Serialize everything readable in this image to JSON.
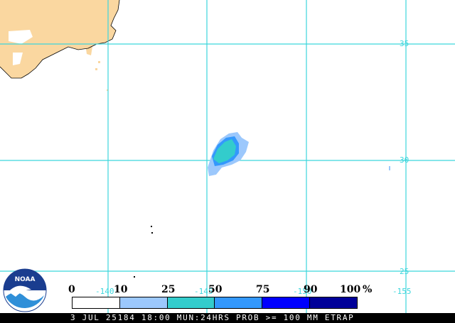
{
  "map": {
    "latitude_labels": [
      "35",
      "30",
      "25"
    ],
    "longitude_labels": [
      "-140",
      "-145",
      "-150",
      "-155"
    ]
  },
  "legend": {
    "values": [
      "0",
      "10",
      "25",
      "50",
      "75",
      "90",
      "100",
      "%"
    ],
    "colors": [
      "#ffffff",
      "#9cc8fc",
      "#33cccc",
      "#3398fc",
      "#0000fe",
      "#000099"
    ]
  },
  "footer": {
    "caption": "3 JUL 25184 18:00 MUN:24HRS PROB >= 100 MM ETRAP"
  },
  "logo": {
    "text": "NOAA"
  },
  "colors": {
    "land": "#fad7a0",
    "grid": "#3cd6dc",
    "background": "#ffffff"
  }
}
